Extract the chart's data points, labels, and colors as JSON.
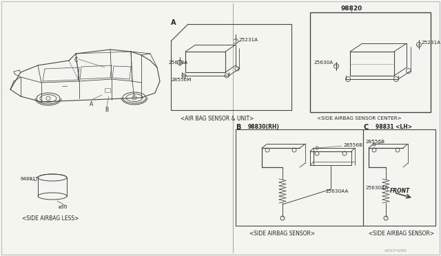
{
  "bg_color": "#f5f5f0",
  "line_color": "#444444",
  "thin_line": "#666666",
  "border_color": "#999999",
  "text_color": "#222222",
  "caption_A": "<AIR BAG SENSOR & UNIT>",
  "caption_center": "<SIDE AIRBAG SENSOR CENTER>",
  "caption_B": "<SIDE AIRBAG SENSOR>",
  "caption_C": "<SIDE AIRBAG SENSOR>",
  "caption_less": "<SIDE AIRBAG LESS>",
  "part_98820": "98820",
  "part_98830": "98830(RH)",
  "part_98831": "98831 <LH>",
  "part_25231A": "25231A",
  "part_25630A": "25630A",
  "part_28556M": "28556M",
  "part_28556B": "28556B",
  "part_25630AA": "25630AA",
  "part_front": "FRONT",
  "part_64891T": "64891T",
  "part_phi30": "ø30",
  "watermark": "A253*0/65",
  "label_A": "A",
  "label_B": "B",
  "label_C": "C",
  "label_car_A": "A",
  "label_car_B": "B",
  "label_car_C": "C"
}
